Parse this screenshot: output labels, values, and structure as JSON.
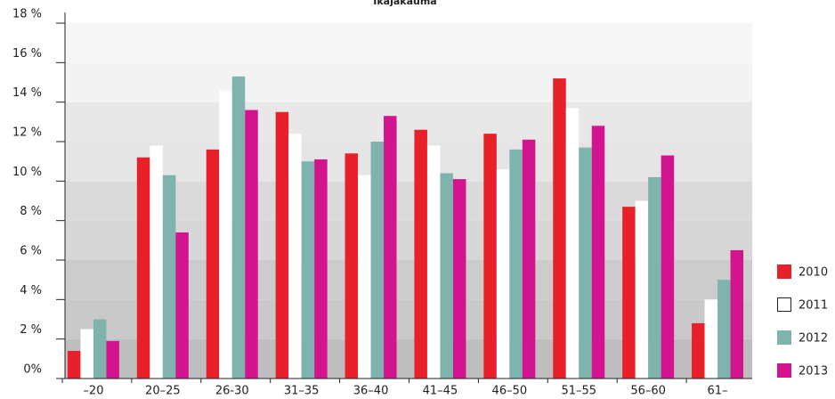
{
  "chart_data": {
    "type": "bar",
    "title": "Ikäjakauma",
    "categories": [
      "–20",
      "20–25",
      "26-30",
      "31–35",
      "36–40",
      "41–45",
      "46–50",
      "51–55",
      "56–60",
      "61–"
    ],
    "series": [
      {
        "name": "2010",
        "color": "#e8202a",
        "values": [
          1.4,
          11.2,
          11.6,
          13.5,
          11.4,
          12.6,
          12.4,
          15.2,
          8.7,
          2.8
        ]
      },
      {
        "name": "2011",
        "color": "#ffffff",
        "values": [
          2.5,
          11.8,
          14.6,
          12.4,
          10.3,
          11.8,
          10.6,
          13.7,
          9.0,
          4.0
        ]
      },
      {
        "name": "2012",
        "color": "#7fb3ae",
        "values": [
          3.0,
          10.3,
          15.3,
          11.0,
          12.0,
          10.4,
          11.6,
          11.7,
          10.2,
          5.0
        ]
      },
      {
        "name": "2013",
        "color": "#d4148f",
        "values": [
          1.9,
          7.4,
          13.6,
          11.1,
          13.3,
          10.1,
          12.1,
          12.8,
          11.3,
          6.5
        ]
      }
    ],
    "ylim": [
      0,
      18
    ],
    "yticks": [
      {
        "value": 0,
        "label": "0%"
      },
      {
        "value": 2,
        "label": "2 %"
      },
      {
        "value": 4,
        "label": "4 %"
      },
      {
        "value": 6,
        "label": "6 %"
      },
      {
        "value": 8,
        "label": "8 %"
      },
      {
        "value": 10,
        "label": "10 %"
      },
      {
        "value": 12,
        "label": "12 %"
      },
      {
        "value": 14,
        "label": "14 %"
      },
      {
        "value": 16,
        "label": "16 %"
      },
      {
        "value": 18,
        "label": "18 %"
      }
    ],
    "grid": true,
    "legend": "bottom-right"
  }
}
